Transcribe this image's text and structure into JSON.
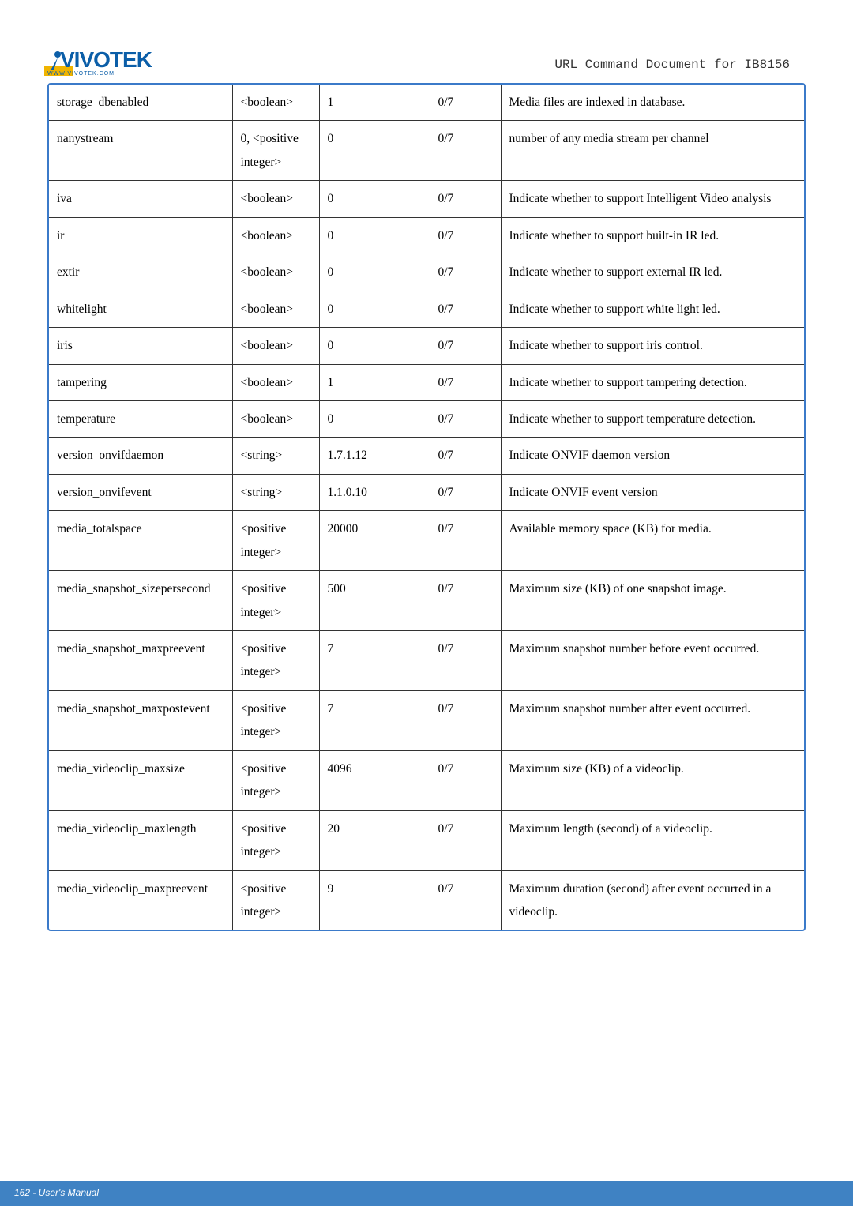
{
  "header": {
    "logo_main": "VIVOTEK",
    "logo_sub": "WWW.VIVOTEK.COM",
    "doc_title": "URL Command Document for IB8156"
  },
  "columns": {
    "c1_w": 232,
    "c2_w": 110,
    "c3_w": 140,
    "c4_w": 90
  },
  "rows": [
    {
      "p": "storage_dbenabled",
      "t": "<boolean>",
      "d": "1",
      "s": "0/7",
      "desc": "Media files are indexed in database."
    },
    {
      "p": "nanystream",
      "t": "0, <positive integer>",
      "d": "0",
      "s": "0/7",
      "desc": "number of any media stream per channel"
    },
    {
      "p": "iva",
      "t": "<boolean>",
      "d": "0",
      "s": "0/7",
      "desc": "Indicate whether to support Intelligent Video analysis"
    },
    {
      "p": "ir",
      "t": "<boolean>",
      "d": "0",
      "s": "0/7",
      "desc": "Indicate whether to support built-in IR led."
    },
    {
      "p": "extir",
      "t": "<boolean>",
      "d": "0",
      "s": "0/7",
      "desc": "Indicate whether to support external IR led."
    },
    {
      "p": "whitelight",
      "t": "<boolean>",
      "d": "0",
      "s": "0/7",
      "desc": "Indicate whether to support white light led."
    },
    {
      "p": "iris",
      "t": "<boolean>",
      "d": "0",
      "s": "0/7",
      "desc": "Indicate whether to support iris control."
    },
    {
      "p": "tampering",
      "t": "<boolean>",
      "d": "1",
      "s": "0/7",
      "desc": "Indicate whether to support tampering detection."
    },
    {
      "p": "temperature",
      "t": "<boolean>",
      "d": "0",
      "s": "0/7",
      "desc": "Indicate whether to support temperature detection."
    },
    {
      "p": "version_onvifdaemon",
      "t": "<string>",
      "d": "1.7.1.12",
      "s": "0/7",
      "desc": "Indicate ONVIF daemon version"
    },
    {
      "p": "version_onvifevent",
      "t": "<string>",
      "d": "1.1.0.10",
      "s": "0/7",
      "desc": "Indicate ONVIF event version"
    },
    {
      "p": "media_totalspace",
      "t": "<positive integer>",
      "d": "20000",
      "s": "0/7",
      "desc": "Available memory space (KB) for media."
    },
    {
      "p": "media_snapshot_sizepersecond",
      "t": "<positive integer>",
      "d": "500",
      "s": "0/7",
      "desc": "Maximum size (KB) of one snapshot image."
    },
    {
      "p": "media_snapshot_maxpreevent",
      "t": "<positive integer>",
      "d": "7",
      "s": "0/7",
      "desc": "Maximum snapshot number before event occurred."
    },
    {
      "p": "media_snapshot_maxpostevent",
      "t": "<positive integer>",
      "d": "7",
      "s": "0/7",
      "desc": "Maximum snapshot number after event occurred."
    },
    {
      "p": "media_videoclip_maxsize",
      "t": "<positive integer>",
      "d": "4096",
      "s": "0/7",
      "desc": "Maximum size (KB) of a videoclip."
    },
    {
      "p": "media_videoclip_maxlength",
      "t": "<positive integer>",
      "d": "20",
      "s": "0/7",
      "desc": "Maximum length (second) of a videoclip."
    },
    {
      "p": "media_videoclip_maxpreevent",
      "t": "<positive integer>",
      "d": "9",
      "s": "0/7",
      "desc": "Maximum duration (second) after event occurred in a videoclip."
    }
  ],
  "footer": {
    "page_label": "162 - User's Manual"
  }
}
